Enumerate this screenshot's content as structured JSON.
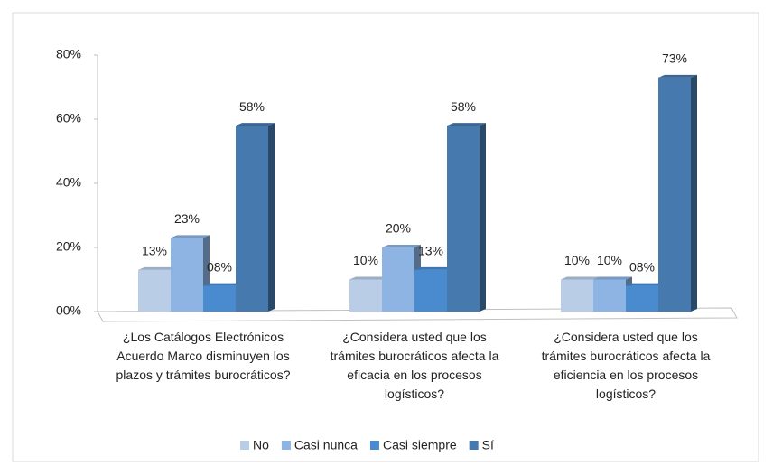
{
  "chart_data": {
    "type": "bar",
    "categories": [
      "¿Los Catálogos Electrónicos Acuerdo Marco disminuyen los plazos y trámites burocráticos?",
      "¿Considera usted que los trámites burocráticos afecta la eficacia en los procesos logísticos?",
      "¿Considera usted que los trámites burocráticos afecta la eficiencia en los procesos logísticos?"
    ],
    "series": [
      {
        "name": "No",
        "color": "#b9cde6",
        "values": [
          13,
          10,
          10
        ],
        "value_labels": [
          "13%",
          "10%",
          "10%"
        ]
      },
      {
        "name": "Casi nunca",
        "color": "#8db4e2",
        "values": [
          23,
          20,
          10
        ],
        "value_labels": [
          "23%",
          "20%",
          "10%"
        ]
      },
      {
        "name": "Casi siempre",
        "color": "#4a8bd0",
        "values": [
          8,
          13,
          8
        ],
        "value_labels": [
          "08%",
          "13%",
          "08%"
        ]
      },
      {
        "name": "Sí",
        "color": "#4679ad",
        "values": [
          58,
          58,
          73
        ],
        "value_labels": [
          "58%",
          "58%",
          "73%"
        ]
      }
    ],
    "ylim": [
      0,
      80
    ],
    "yticks": [
      {
        "value": 0,
        "label": "00%"
      },
      {
        "value": 20,
        "label": "20%"
      },
      {
        "value": 40,
        "label": "40%"
      },
      {
        "value": 60,
        "label": "60%"
      },
      {
        "value": 80,
        "label": "80%"
      }
    ],
    "legend": "bottom"
  }
}
